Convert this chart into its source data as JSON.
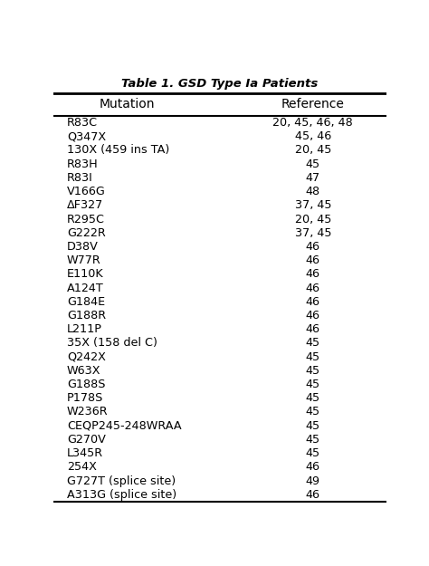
{
  "title": "Table 1. GSD Type Ia Patients",
  "col_headers": [
    "Mutation",
    "Reference"
  ],
  "rows": [
    [
      "R83C",
      "20, 45, 46, 48"
    ],
    [
      "Q347X",
      "45, 46"
    ],
    [
      "130X (459 ins TA)",
      "20, 45"
    ],
    [
      "R83H",
      "45"
    ],
    [
      "R83I",
      "47"
    ],
    [
      "V166G",
      "48"
    ],
    [
      "ΔF327",
      "37, 45"
    ],
    [
      "R295C",
      "20, 45"
    ],
    [
      "G222R",
      "37, 45"
    ],
    [
      "D38V",
      "46"
    ],
    [
      "W77R",
      "46"
    ],
    [
      "E110K",
      "46"
    ],
    [
      "A124T",
      "46"
    ],
    [
      "G184E",
      "46"
    ],
    [
      "G188R",
      "46"
    ],
    [
      "L211P",
      "46"
    ],
    [
      "35X (158 del C)",
      "45"
    ],
    [
      "Q242X",
      "45"
    ],
    [
      "W63X",
      "45"
    ],
    [
      "G188S",
      "45"
    ],
    [
      "P178S",
      "45"
    ],
    [
      "W236R",
      "45"
    ],
    [
      "CEQP245-248WRAA",
      "45"
    ],
    [
      "G270V",
      "45"
    ],
    [
      "L345R",
      "45"
    ],
    [
      "254X",
      "46"
    ],
    [
      "G727T (splice site)",
      "49"
    ],
    [
      "A313G (splice site)",
      "46"
    ]
  ],
  "fig_width": 4.74,
  "fig_height": 6.25,
  "dpi": 100,
  "bg_color": "#ffffff",
  "header_fontsize": 10,
  "row_fontsize": 9.2,
  "title_fontsize": 9.5
}
